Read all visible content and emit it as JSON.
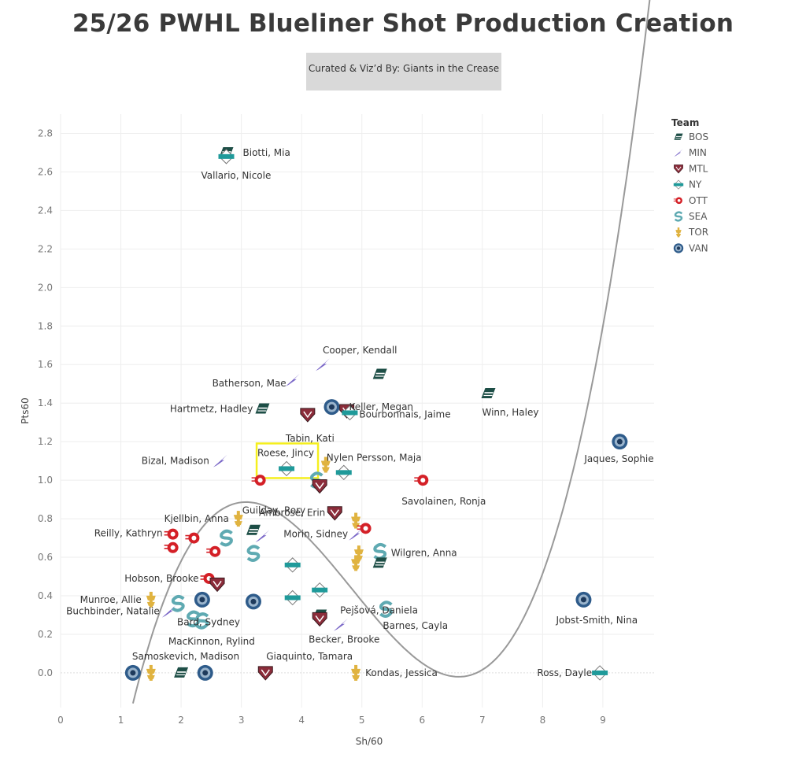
{
  "title": "25/26 PWHL Blueliner Shot Production Creation",
  "subtitle": "Curated & Viz’d By: Giants in the Crease",
  "colors": {
    "BOS": "#1d4e46",
    "MIN": "#7b68c8",
    "MTL": "#8b2c3a",
    "NY": "#1f9a9a",
    "OTT": "#d42027",
    "SEA": "#5faab2",
    "TOR": "#e0b340",
    "VAN": "#2e5b8a",
    "trend": "#999999",
    "highlight": "#f5ef1f"
  },
  "chart_data": {
    "type": "scatter",
    "xlabel": "Sh/60",
    "ylabel": "Pts60",
    "xlim": [
      0,
      9.85
    ],
    "ylim": [
      -0.18,
      2.9
    ],
    "xticks": [
      0,
      1,
      2,
      3,
      4,
      5,
      6,
      7,
      8,
      9
    ],
    "xtick_labels": [
      "0",
      "1",
      "2",
      "3",
      "4",
      "5",
      "6",
      "7",
      "8",
      "9"
    ],
    "yticks": [
      0,
      0.2,
      0.4,
      0.6,
      0.8,
      1.0,
      1.2,
      1.4,
      1.6,
      1.8,
      2.0,
      2.2,
      2.4,
      2.6,
      2.8
    ],
    "ytick_labels": [
      "0.0",
      "0.2",
      "0.4",
      "0.6",
      "0.8",
      "1.0",
      "1.2",
      "1.4",
      "1.6",
      "1.8",
      "2.0",
      "2.2",
      "2.4",
      "2.6",
      "2.8"
    ],
    "grid": true,
    "legend": {
      "title": "Team",
      "placement": "top-right",
      "entries": [
        "BOS",
        "MIN",
        "MTL",
        "NY",
        "OTT",
        "SEA",
        "TOR",
        "VAN"
      ]
    },
    "trendline": {
      "type": "cubic",
      "coefficients": [
        -2.39,
        2.52,
        -0.6,
        0.0413
      ]
    },
    "highlighted_player": "Roese, Jincy",
    "points": [
      {
        "team": "BOS",
        "x": 2.75,
        "y": 2.7,
        "label": "Biotti, Mia"
      },
      {
        "team": "NY",
        "x": 2.75,
        "y": 2.68,
        "label": "Vallario, Nicole"
      },
      {
        "team": "MIN",
        "x": 4.35,
        "y": 1.6,
        "label": "Cooper, Kendall"
      },
      {
        "team": "BOS",
        "x": 5.3,
        "y": 1.55,
        "label": ""
      },
      {
        "team": "MIN",
        "x": 3.85,
        "y": 1.52,
        "label": "Batherson, Mae"
      },
      {
        "team": "BOS",
        "x": 7.1,
        "y": 1.45,
        "label": "Winn, Haley"
      },
      {
        "team": "VAN",
        "x": 4.5,
        "y": 1.38,
        "label": "Keller, Megan"
      },
      {
        "team": "BOS",
        "x": 3.35,
        "y": 1.37,
        "label": "Hartmetz, Hadley"
      },
      {
        "team": "MTL",
        "x": 4.1,
        "y": 1.34,
        "label": "Tabin, Kati"
      },
      {
        "team": "MTL",
        "x": 4.75,
        "y": 1.36,
        "label": ""
      },
      {
        "team": "NY",
        "x": 4.8,
        "y": 1.35,
        "label": "Bourbonnais, Jaime"
      },
      {
        "team": "VAN",
        "x": 9.28,
        "y": 1.2,
        "label": "Jaques, Sophie"
      },
      {
        "team": "MIN",
        "x": 2.65,
        "y": 1.1,
        "label": "Bizal, Madison"
      },
      {
        "team": "TOR",
        "x": 4.4,
        "y": 1.08,
        "label": ""
      },
      {
        "team": "NY",
        "x": 3.75,
        "y": 1.06,
        "label": "Roese, Jincy"
      },
      {
        "team": "NY",
        "x": 4.7,
        "y": 1.04,
        "label": "Nylen Persson, Maja"
      },
      {
        "team": "OTT",
        "x": 3.3,
        "y": 1.0,
        "label": ""
      },
      {
        "team": "SEA",
        "x": 4.25,
        "y": 1.0,
        "label": ""
      },
      {
        "team": "MTL",
        "x": 4.3,
        "y": 0.97,
        "label": "Guilday, Rory"
      },
      {
        "team": "OTT",
        "x": 6.0,
        "y": 1.0,
        "label": "Savolainen, Ronja"
      },
      {
        "team": "MTL",
        "x": 4.55,
        "y": 0.83,
        "label": "Ambrose, Erin"
      },
      {
        "team": "TOR",
        "x": 2.95,
        "y": 0.8,
        "label": "Kjellbin, Anna"
      },
      {
        "team": "TOR",
        "x": 4.9,
        "y": 0.79,
        "label": ""
      },
      {
        "team": "BOS",
        "x": 3.2,
        "y": 0.74,
        "label": ""
      },
      {
        "team": "OTT",
        "x": 5.05,
        "y": 0.75,
        "label": ""
      },
      {
        "team": "MIN",
        "x": 3.35,
        "y": 0.71,
        "label": ""
      },
      {
        "team": "MIN",
        "x": 4.9,
        "y": 0.72,
        "label": "Morin, Sidney"
      },
      {
        "team": "OTT",
        "x": 1.85,
        "y": 0.72,
        "label": "Reilly, Kathryn"
      },
      {
        "team": "OTT",
        "x": 2.2,
        "y": 0.7,
        "label": ""
      },
      {
        "team": "SEA",
        "x": 2.75,
        "y": 0.7,
        "label": ""
      },
      {
        "team": "OTT",
        "x": 1.85,
        "y": 0.65,
        "label": ""
      },
      {
        "team": "OTT",
        "x": 2.55,
        "y": 0.63,
        "label": ""
      },
      {
        "team": "SEA",
        "x": 3.2,
        "y": 0.62,
        "label": ""
      },
      {
        "team": "TOR",
        "x": 4.95,
        "y": 0.62,
        "label": ""
      },
      {
        "team": "SEA",
        "x": 5.3,
        "y": 0.63,
        "label": "Wilgren, Anna"
      },
      {
        "team": "TOR",
        "x": 4.9,
        "y": 0.57,
        "label": ""
      },
      {
        "team": "BOS",
        "x": 5.3,
        "y": 0.57,
        "label": ""
      },
      {
        "team": "NY",
        "x": 3.85,
        "y": 0.56,
        "label": ""
      },
      {
        "team": "OTT",
        "x": 2.45,
        "y": 0.49,
        "label": "Hobson, Brooke"
      },
      {
        "team": "MTL",
        "x": 2.6,
        "y": 0.46,
        "label": ""
      },
      {
        "team": "NY",
        "x": 4.3,
        "y": 0.43,
        "label": "Pejšová, Daniela"
      },
      {
        "team": "TOR",
        "x": 1.5,
        "y": 0.38,
        "label": "Munroe, Allie"
      },
      {
        "team": "SEA",
        "x": 1.95,
        "y": 0.36,
        "label": ""
      },
      {
        "team": "VAN",
        "x": 2.35,
        "y": 0.38,
        "label": ""
      },
      {
        "team": "VAN",
        "x": 3.2,
        "y": 0.37,
        "label": "Bard, Sydney"
      },
      {
        "team": "NY",
        "x": 3.85,
        "y": 0.39,
        "label": ""
      },
      {
        "team": "VAN",
        "x": 8.68,
        "y": 0.38,
        "label": "Jobst-Smith, Nina"
      },
      {
        "team": "MIN",
        "x": 1.8,
        "y": 0.32,
        "label": "Buchbinder, Natalie"
      },
      {
        "team": "SEA",
        "x": 5.4,
        "y": 0.33,
        "label": "Barnes, Cayla"
      },
      {
        "team": "BOS",
        "x": 4.3,
        "y": 0.3,
        "label": ""
      },
      {
        "team": "MTL",
        "x": 4.3,
        "y": 0.28,
        "label": "Becker, Brooke"
      },
      {
        "team": "SEA",
        "x": 2.2,
        "y": 0.28,
        "label": ""
      },
      {
        "team": "SEA",
        "x": 2.35,
        "y": 0.27,
        "label": "MacKinnon, Rylind"
      },
      {
        "team": "MIN",
        "x": 4.65,
        "y": 0.25,
        "label": ""
      },
      {
        "team": "VAN",
        "x": 1.2,
        "y": 0.0,
        "label": "Samoskevich, Madison"
      },
      {
        "team": "TOR",
        "x": 1.5,
        "y": 0.0,
        "label": ""
      },
      {
        "team": "BOS",
        "x": 2.0,
        "y": 0.0,
        "label": ""
      },
      {
        "team": "VAN",
        "x": 2.4,
        "y": 0.0,
        "label": ""
      },
      {
        "team": "MTL",
        "x": 3.4,
        "y": 0.0,
        "label": "Giaquinto, Tamara"
      },
      {
        "team": "TOR",
        "x": 4.9,
        "y": 0.0,
        "label": "Kondas, Jessica"
      },
      {
        "team": "NY",
        "x": 8.95,
        "y": 0.0,
        "label": "Ross, Dayle"
      }
    ]
  }
}
